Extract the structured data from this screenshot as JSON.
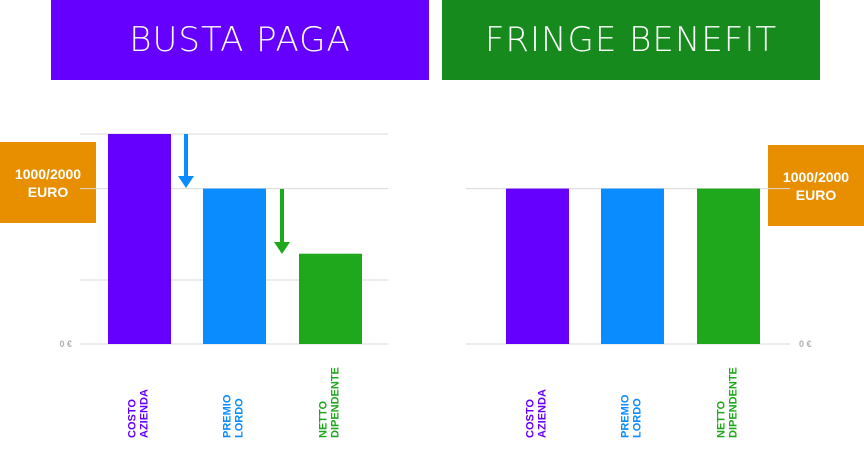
{
  "banners": {
    "left": "BUSTA PAGA",
    "right": "FRINGE BENEFIT"
  },
  "value_boxes": {
    "left": [
      "1000/2000",
      "EURO"
    ],
    "right": [
      "1000/2000",
      "EURO"
    ]
  },
  "colors": {
    "purple": "#6500ff",
    "blue": "#0a8cff",
    "green": "#1fa81b",
    "dark_green": "#178a1e",
    "orange": "#e88f00",
    "grid": "#d9d9d9"
  },
  "chart_data": [
    {
      "type": "bar",
      "title": "BUSTA PAGA",
      "categories": [
        [
          "COSTO",
          "AZIENDA"
        ],
        [
          "PREMIO",
          "LORDO"
        ],
        [
          "NETTO",
          "DIPENDENTE"
        ]
      ],
      "values": [
        100,
        74,
        43
      ],
      "y_tick_label": "0 €",
      "ylim": [
        0,
        100
      ],
      "grid": true,
      "annotation": "1000/2000 EURO",
      "arrows": [
        "COSTO AZIENDA → PREMIO LORDO",
        "PREMIO LORDO → NETTO DIPENDENTE"
      ]
    },
    {
      "type": "bar",
      "title": "FRINGE BENEFIT",
      "categories": [
        [
          "COSTO",
          "AZIENDA"
        ],
        [
          "PREMIO",
          "LORDO"
        ],
        [
          "NETTO",
          "DIPENDENTE"
        ]
      ],
      "values": [
        74,
        74,
        74
      ],
      "y_tick_label": "0 €",
      "ylim": [
        0,
        100
      ],
      "grid": true,
      "annotation": "1000/2000 EURO"
    }
  ]
}
